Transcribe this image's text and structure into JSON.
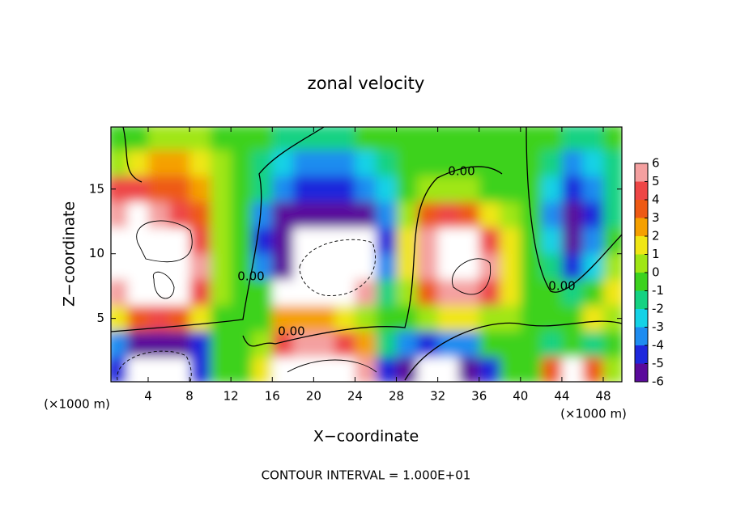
{
  "chart_data": {
    "type": "contour",
    "title": "zonal velocity",
    "x_label": "X−coordinate",
    "y_label": "Z−coordinate",
    "x_unit_label": "(×1000 m)",
    "footer": "CONTOUR INTERVAL = 1.000E+01",
    "contour_labels": [
      "0.00",
      "0.00",
      "0.00",
      "0.00"
    ],
    "xlim": [
      0.4,
      49.8
    ],
    "ylim": [
      0.1,
      19.8
    ],
    "xticks": [
      4,
      8,
      12,
      16,
      20,
      24,
      28,
      32,
      36,
      40,
      44,
      48
    ],
    "yticks": [
      5,
      10,
      15
    ],
    "colorbar_ticks": [
      6,
      5,
      4,
      3,
      2,
      1,
      0,
      -1,
      -2,
      -3,
      -4,
      -5,
      -6
    ],
    "colors": [
      "#f4a0a0",
      "#ee4646",
      "#ee5a14",
      "#f5a000",
      "#f0e614",
      "#a0e614",
      "#3cd21e",
      "#14d282",
      "#14d2e6",
      "#1e8cf0",
      "#1e28dc",
      "#5a0a9b"
    ],
    "x": [
      1,
      3,
      5,
      7,
      9,
      11,
      13,
      15,
      17,
      19,
      21,
      23,
      25,
      27,
      29,
      31,
      33,
      35,
      37,
      39,
      41,
      43,
      45,
      47,
      49
    ],
    "y": [
      19,
      17,
      15,
      13,
      11,
      9,
      7,
      5,
      3,
      1
    ],
    "z": [
      [
        0,
        0,
        1,
        1,
        0.5,
        0,
        0,
        0,
        -1,
        -1,
        -1,
        -1,
        -0.5,
        0,
        0,
        0,
        0,
        0,
        0,
        0,
        0,
        0,
        -1,
        -1,
        0
      ],
      [
        1,
        2,
        3,
        3,
        2,
        1,
        0,
        -1,
        -2,
        -3,
        -3,
        -3,
        -2,
        -1,
        0,
        0,
        0,
        0,
        0,
        0,
        0,
        -1,
        -3,
        -2,
        -1
      ],
      [
        5,
        5,
        4,
        4,
        3,
        1,
        0,
        -1,
        -3,
        -4,
        -4,
        -4,
        -3,
        -2,
        0,
        1,
        1,
        1,
        0,
        0,
        0,
        -2,
        -4,
        -3,
        -1
      ],
      [
        6,
        8,
        6,
        5,
        4,
        1,
        0,
        -3,
        -5,
        -5,
        -5,
        -5,
        -6,
        -3,
        1,
        4,
        5,
        4,
        2,
        1,
        0,
        -3,
        -5,
        -4,
        -1
      ],
      [
        8,
        8,
        8,
        7,
        5,
        1,
        0,
        -4,
        -6,
        8,
        8,
        8,
        7,
        -4,
        2,
        6,
        8,
        8,
        5,
        2,
        0,
        -2,
        -6,
        -3,
        0
      ],
      [
        8,
        8,
        8,
        8,
        6,
        1,
        0,
        -3,
        -6,
        8,
        8,
        8,
        8,
        -3,
        2,
        6,
        8,
        8,
        6,
        2,
        0,
        -1,
        -4,
        -2,
        1
      ],
      [
        6,
        8,
        8,
        7,
        5,
        1,
        0,
        0,
        8,
        8,
        8,
        8,
        6,
        -1,
        1,
        4,
        6,
        6,
        5,
        2,
        0,
        0,
        -1,
        0,
        2
      ],
      [
        2,
        4,
        5,
        4,
        2,
        0,
        0,
        0,
        3,
        3,
        3,
        2,
        1,
        0,
        0,
        1,
        2,
        2,
        1,
        1,
        0,
        0,
        0,
        2,
        1
      ],
      [
        -3,
        -5,
        -5,
        -5,
        -4,
        0,
        0,
        1,
        5,
        6,
        6,
        5,
        3,
        -1,
        -3,
        -4,
        -3,
        -3,
        0,
        0,
        0,
        -1,
        0,
        -1,
        0
      ],
      [
        -4,
        8,
        8,
        8,
        -4,
        0,
        0,
        2,
        8,
        8,
        8,
        8,
        6,
        -4,
        -5,
        8,
        8,
        -5,
        -4,
        0,
        0,
        4,
        8,
        4,
        1
      ]
    ]
  }
}
